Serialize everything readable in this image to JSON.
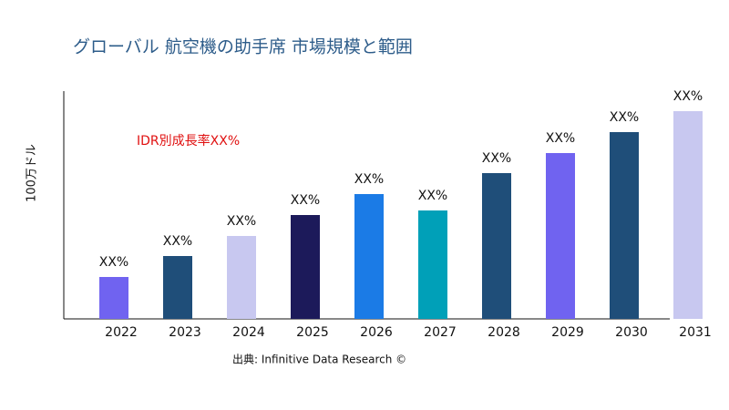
{
  "chart_data": {
    "type": "bar",
    "title": "グローバル 航空機の助手席 市場規模と範囲",
    "y_label": "100万ドル",
    "annotation": "IDR別成長率XX%",
    "source": "出典: Infinitive Data Research ©",
    "categories": [
      "2022",
      "2023",
      "2024",
      "2025",
      "2026",
      "2027",
      "2028",
      "2029",
      "2030",
      "2031"
    ],
    "values": [
      46,
      69,
      91,
      114,
      137,
      119,
      160,
      182,
      205,
      228
    ],
    "value_labels": [
      "XX%",
      "XX%",
      "XX%",
      "XX%",
      "XX%",
      "XX%",
      "XX%",
      "XX%",
      "XX%",
      "XX%"
    ],
    "colors": [
      "#7063f0",
      "#1f4e79",
      "#c8c8f0",
      "#1c1a5a",
      "#1b7be6",
      "#00a0b8",
      "#1f4e79",
      "#7063f0",
      "#1f4e79",
      "#c8c8f0"
    ],
    "ylim": [
      0,
      250
    ]
  }
}
